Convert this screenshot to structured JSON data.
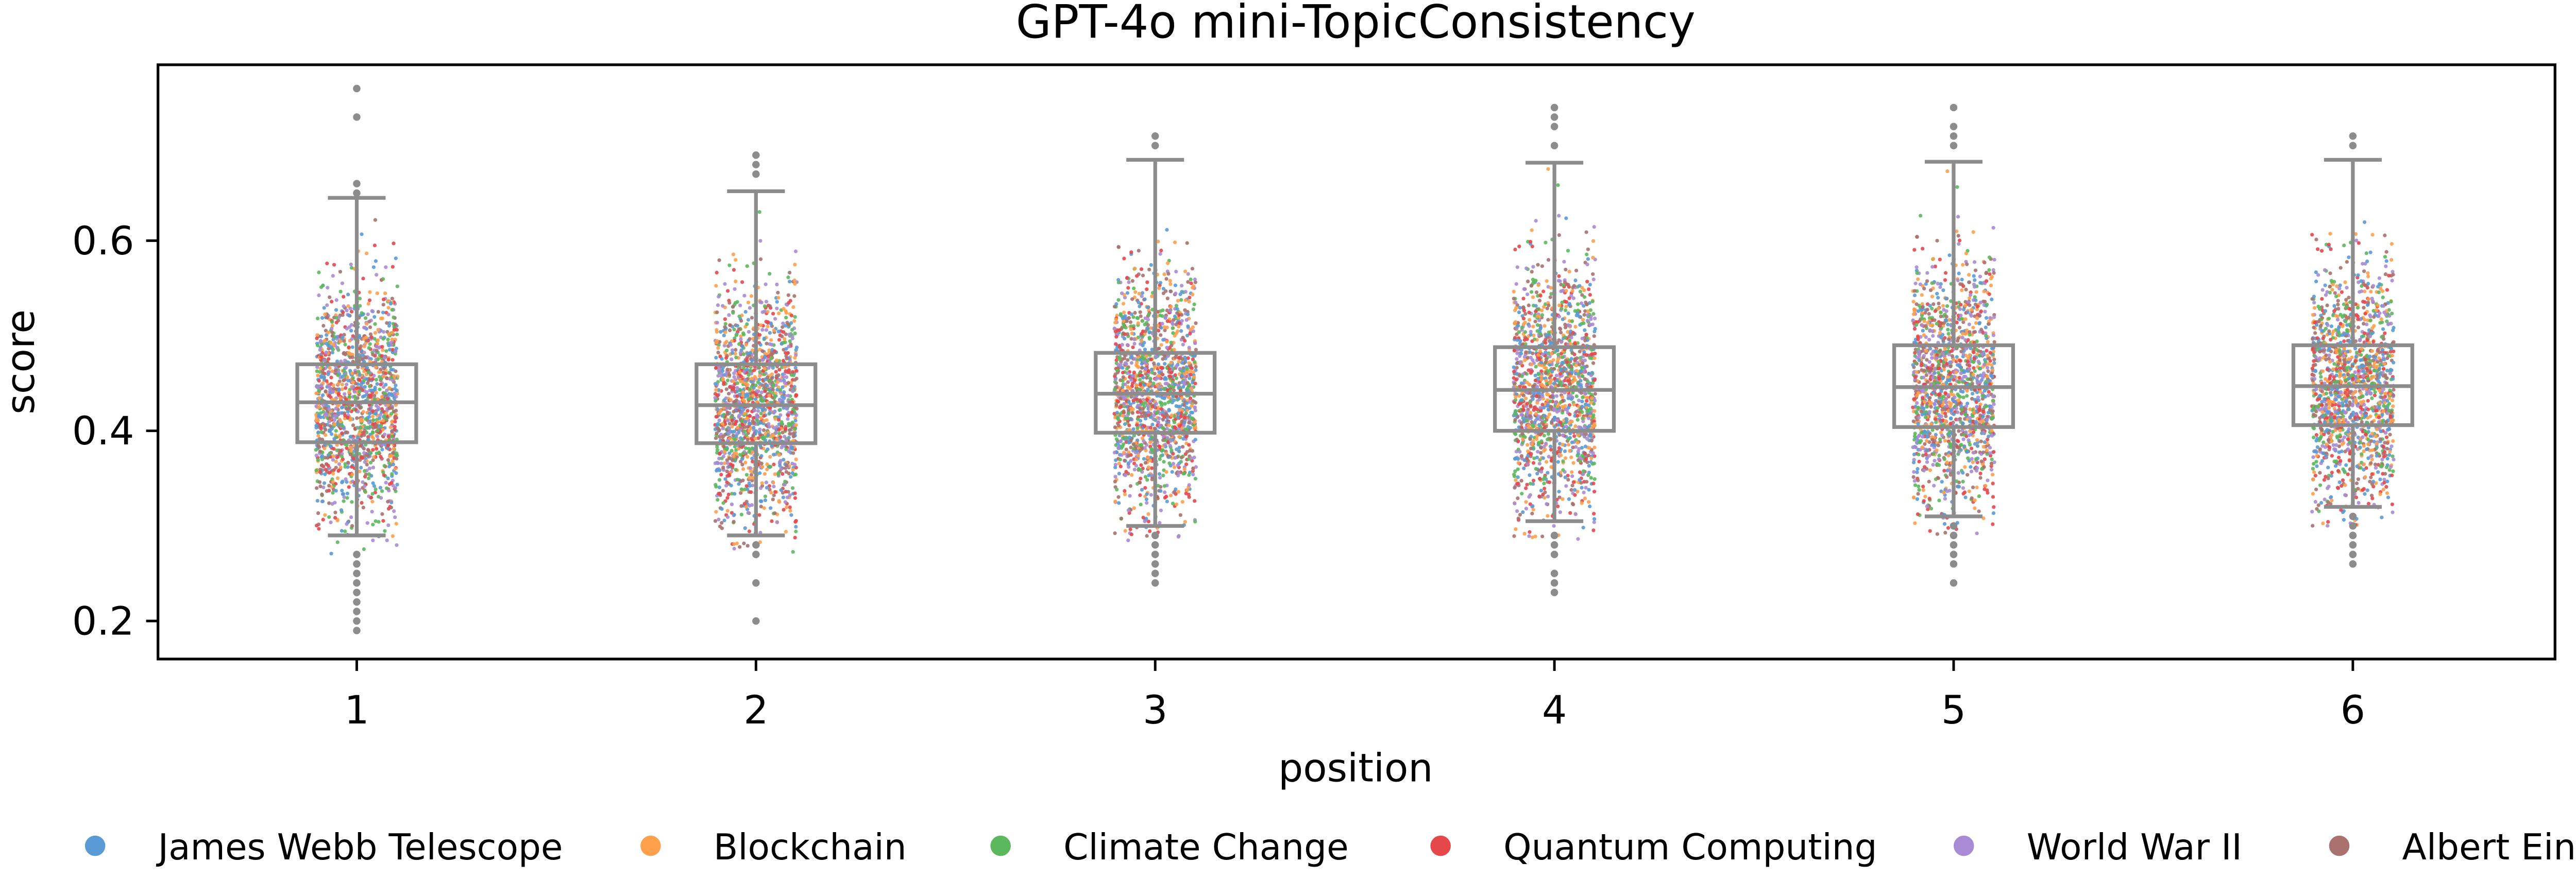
{
  "chart_data": {
    "type": "box-strip",
    "title": "GPT-4o mini-TopicConsistency",
    "xlabel": "position",
    "ylabel": "score",
    "categories": [
      "1",
      "2",
      "3",
      "4",
      "5",
      "6"
    ],
    "yticks": [
      "0.2",
      "0.4",
      "0.6"
    ],
    "ylim": [
      0.16,
      0.785
    ],
    "grid": false,
    "legend_position": "bottom",
    "series": [
      {
        "name": "James Webb Telescope",
        "color": "#5a9bd5"
      },
      {
        "name": "Blockchain",
        "color": "#ffa04d"
      },
      {
        "name": "Climate Change",
        "color": "#5cb85c"
      },
      {
        "name": "Quantum Computing",
        "color": "#e5474b"
      },
      {
        "name": "World War II",
        "color": "#a88bd4"
      },
      {
        "name": "Albert Einstein",
        "color": "#a9726f"
      }
    ],
    "box_color": "#8c8c8c",
    "boxes": [
      {
        "position": "1",
        "q1": 0.388,
        "median": 0.43,
        "q3": 0.47,
        "whisker_low": 0.29,
        "whisker_high": 0.645,
        "outliers": [
          0.76,
          0.73,
          0.65,
          0.66,
          0.27,
          0.26,
          0.25,
          0.24,
          0.23,
          0.22,
          0.21,
          0.2,
          0.19
        ]
      },
      {
        "position": "2",
        "q1": 0.387,
        "median": 0.427,
        "q3": 0.47,
        "whisker_low": 0.29,
        "whisker_high": 0.652,
        "outliers": [
          0.69,
          0.68,
          0.67,
          0.28,
          0.27,
          0.24,
          0.2
        ]
      },
      {
        "position": "3",
        "q1": 0.398,
        "median": 0.439,
        "q3": 0.482,
        "whisker_low": 0.3,
        "whisker_high": 0.685,
        "outliers": [
          0.71,
          0.7,
          0.29,
          0.28,
          0.27,
          0.26,
          0.25,
          0.24
        ]
      },
      {
        "position": "4",
        "q1": 0.4,
        "median": 0.443,
        "q3": 0.488,
        "whisker_low": 0.305,
        "whisker_high": 0.682,
        "outliers": [
          0.74,
          0.73,
          0.72,
          0.7,
          0.29,
          0.28,
          0.27,
          0.25,
          0.24,
          0.23
        ]
      },
      {
        "position": "5",
        "q1": 0.404,
        "median": 0.446,
        "q3": 0.49,
        "whisker_low": 0.31,
        "whisker_high": 0.683,
        "outliers": [
          0.74,
          0.72,
          0.71,
          0.7,
          0.3,
          0.29,
          0.28,
          0.27,
          0.26,
          0.24
        ]
      },
      {
        "position": "6",
        "q1": 0.406,
        "median": 0.447,
        "q3": 0.49,
        "whisker_low": 0.32,
        "whisker_high": 0.685,
        "outliers": [
          0.71,
          0.7,
          0.31,
          0.3,
          0.29,
          0.28,
          0.27,
          0.26
        ]
      }
    ]
  }
}
